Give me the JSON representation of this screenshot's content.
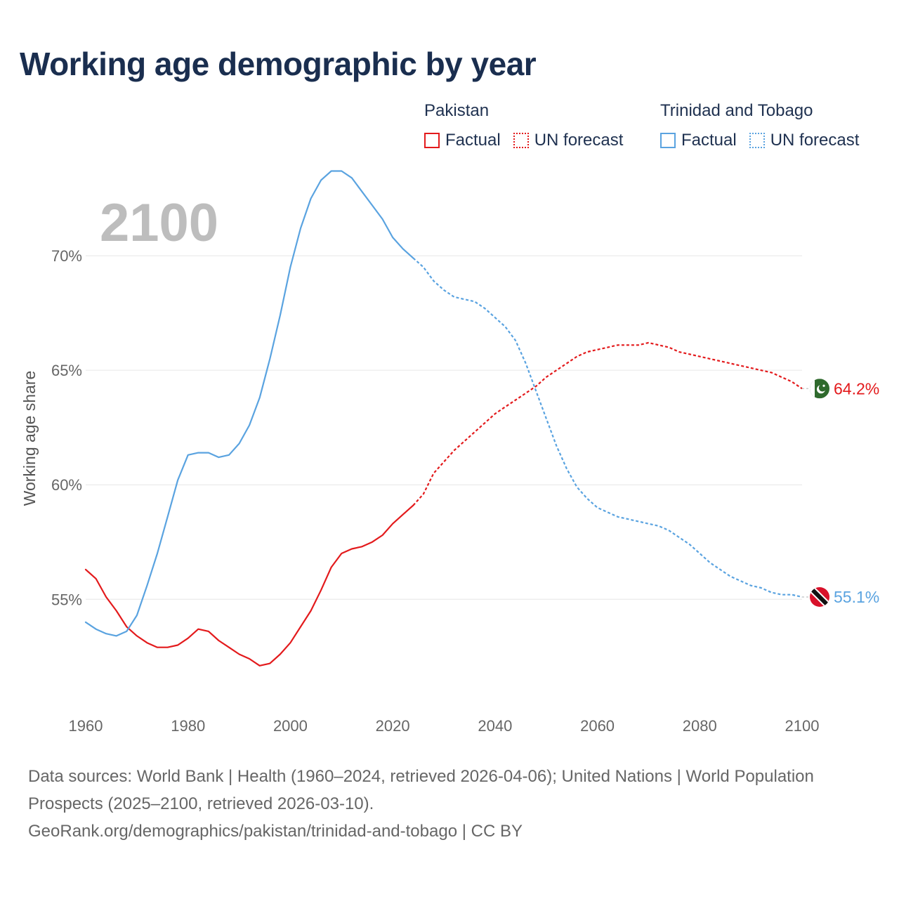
{
  "title": "Working age demographic by year",
  "year_overlay": "2100",
  "legend": {
    "groups": [
      {
        "name": "Pakistan",
        "color": "#e31a1c",
        "items": [
          {
            "label": "Factual",
            "style": "solid"
          },
          {
            "label": "UN forecast",
            "style": "dotted"
          }
        ]
      },
      {
        "name": "Trinidad and Tobago",
        "color": "#5aa3e0",
        "items": [
          {
            "label": "Factual",
            "style": "solid"
          },
          {
            "label": "UN forecast",
            "style": "dotted"
          }
        ]
      }
    ]
  },
  "chart_data": {
    "type": "line",
    "title": "Working age demographic by year",
    "xlabel": "",
    "ylabel": "Working age share",
    "xlim": [
      1960,
      2100
    ],
    "ylim": [
      50.5,
      73.5
    ],
    "x_ticks": [
      1960,
      1980,
      2000,
      2020,
      2040,
      2060,
      2080,
      2100
    ],
    "y_ticks": [
      55,
      60,
      65,
      70
    ],
    "y_tick_labels": [
      "55%",
      "60%",
      "65%",
      "70%"
    ],
    "grid": true,
    "factual_end_year": 2024,
    "series": [
      {
        "name": "Pakistan",
        "color": "#e31a1c",
        "end_label": "64.2%",
        "flag": "pakistan-flag",
        "points": [
          [
            1960,
            56.3
          ],
          [
            1962,
            55.9
          ],
          [
            1964,
            55.1
          ],
          [
            1966,
            54.5
          ],
          [
            1968,
            53.8
          ],
          [
            1970,
            53.4
          ],
          [
            1972,
            53.1
          ],
          [
            1974,
            52.9
          ],
          [
            1976,
            52.9
          ],
          [
            1978,
            53.0
          ],
          [
            1980,
            53.3
          ],
          [
            1982,
            53.7
          ],
          [
            1984,
            53.6
          ],
          [
            1986,
            53.2
          ],
          [
            1988,
            52.9
          ],
          [
            1990,
            52.6
          ],
          [
            1992,
            52.4
          ],
          [
            1994,
            52.1
          ],
          [
            1996,
            52.2
          ],
          [
            1998,
            52.6
          ],
          [
            2000,
            53.1
          ],
          [
            2002,
            53.8
          ],
          [
            2004,
            54.5
          ],
          [
            2006,
            55.4
          ],
          [
            2008,
            56.4
          ],
          [
            2010,
            57.0
          ],
          [
            2012,
            57.2
          ],
          [
            2014,
            57.3
          ],
          [
            2016,
            57.5
          ],
          [
            2018,
            57.8
          ],
          [
            2020,
            58.3
          ],
          [
            2022,
            58.7
          ],
          [
            2024,
            59.1
          ],
          [
            2026,
            59.6
          ],
          [
            2028,
            60.5
          ],
          [
            2030,
            61.0
          ],
          [
            2032,
            61.5
          ],
          [
            2034,
            61.9
          ],
          [
            2036,
            62.3
          ],
          [
            2038,
            62.7
          ],
          [
            2040,
            63.1
          ],
          [
            2042,
            63.4
          ],
          [
            2044,
            63.7
          ],
          [
            2046,
            64.0
          ],
          [
            2048,
            64.3
          ],
          [
            2050,
            64.7
          ],
          [
            2052,
            65.0
          ],
          [
            2054,
            65.3
          ],
          [
            2056,
            65.6
          ],
          [
            2058,
            65.8
          ],
          [
            2060,
            65.9
          ],
          [
            2062,
            66.0
          ],
          [
            2064,
            66.1
          ],
          [
            2066,
            66.1
          ],
          [
            2068,
            66.1
          ],
          [
            2070,
            66.2
          ],
          [
            2072,
            66.1
          ],
          [
            2074,
            66.0
          ],
          [
            2076,
            65.8
          ],
          [
            2078,
            65.7
          ],
          [
            2080,
            65.6
          ],
          [
            2082,
            65.5
          ],
          [
            2084,
            65.4
          ],
          [
            2086,
            65.3
          ],
          [
            2088,
            65.2
          ],
          [
            2090,
            65.1
          ],
          [
            2092,
            65.0
          ],
          [
            2094,
            64.9
          ],
          [
            2096,
            64.7
          ],
          [
            2098,
            64.5
          ],
          [
            2100,
            64.2
          ]
        ]
      },
      {
        "name": "Trinidad and Tobago",
        "color": "#5aa3e0",
        "end_label": "55.1%",
        "flag": "trinidad-and-tobago-flag",
        "points": [
          [
            1960,
            54.0
          ],
          [
            1962,
            53.7
          ],
          [
            1964,
            53.5
          ],
          [
            1966,
            53.4
          ],
          [
            1968,
            53.6
          ],
          [
            1970,
            54.3
          ],
          [
            1972,
            55.6
          ],
          [
            1974,
            57.0
          ],
          [
            1976,
            58.6
          ],
          [
            1978,
            60.2
          ],
          [
            1980,
            61.3
          ],
          [
            1982,
            61.4
          ],
          [
            1984,
            61.4
          ],
          [
            1986,
            61.2
          ],
          [
            1988,
            61.3
          ],
          [
            1990,
            61.8
          ],
          [
            1992,
            62.6
          ],
          [
            1994,
            63.8
          ],
          [
            1996,
            65.5
          ],
          [
            1998,
            67.4
          ],
          [
            2000,
            69.5
          ],
          [
            2002,
            71.2
          ],
          [
            2004,
            72.5
          ],
          [
            2006,
            73.3
          ],
          [
            2008,
            73.7
          ],
          [
            2010,
            73.7
          ],
          [
            2012,
            73.4
          ],
          [
            2014,
            72.8
          ],
          [
            2016,
            72.2
          ],
          [
            2018,
            71.6
          ],
          [
            2020,
            70.8
          ],
          [
            2022,
            70.3
          ],
          [
            2024,
            69.9
          ],
          [
            2026,
            69.5
          ],
          [
            2028,
            68.9
          ],
          [
            2030,
            68.5
          ],
          [
            2032,
            68.2
          ],
          [
            2034,
            68.1
          ],
          [
            2036,
            68.0
          ],
          [
            2038,
            67.7
          ],
          [
            2040,
            67.3
          ],
          [
            2042,
            66.9
          ],
          [
            2044,
            66.3
          ],
          [
            2046,
            65.3
          ],
          [
            2048,
            64.1
          ],
          [
            2050,
            62.9
          ],
          [
            2052,
            61.7
          ],
          [
            2054,
            60.7
          ],
          [
            2056,
            59.9
          ],
          [
            2058,
            59.4
          ],
          [
            2060,
            59.0
          ],
          [
            2062,
            58.8
          ],
          [
            2064,
            58.6
          ],
          [
            2066,
            58.5
          ],
          [
            2068,
            58.4
          ],
          [
            2070,
            58.3
          ],
          [
            2072,
            58.2
          ],
          [
            2074,
            58.0
          ],
          [
            2076,
            57.7
          ],
          [
            2078,
            57.4
          ],
          [
            2080,
            57.0
          ],
          [
            2082,
            56.6
          ],
          [
            2084,
            56.3
          ],
          [
            2086,
            56.0
          ],
          [
            2088,
            55.8
          ],
          [
            2090,
            55.6
          ],
          [
            2092,
            55.5
          ],
          [
            2094,
            55.3
          ],
          [
            2096,
            55.2
          ],
          [
            2098,
            55.2
          ],
          [
            2100,
            55.1
          ]
        ]
      }
    ]
  },
  "footer": {
    "line1": "Data sources: World Bank | Health (1960–2024, retrieved 2026-04-06); United Nations | World Population Prospects (2025–2100, retrieved 2026-03-10).",
    "line2": "GeoRank.org/demographics/pakistan/trinidad-and-tobago | CC BY"
  }
}
